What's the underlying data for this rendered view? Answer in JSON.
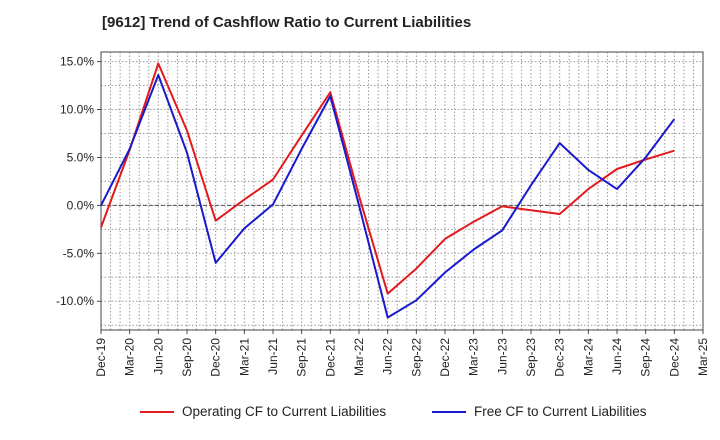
{
  "chart_data": {
    "type": "line",
    "title": "[9612]  Trend of Cashflow Ratio to Current Liabilities",
    "xlabel": "",
    "ylabel": "",
    "categories": [
      "Dec-19",
      "Mar-20",
      "Jun-20",
      "Sep-20",
      "Dec-20",
      "Mar-21",
      "Jun-21",
      "Sep-21",
      "Dec-21",
      "Mar-22",
      "Jun-22",
      "Sep-22",
      "Dec-22",
      "Mar-23",
      "Jun-23",
      "Sep-23",
      "Dec-23",
      "Mar-24",
      "Jun-24",
      "Sep-24",
      "Dec-24",
      "Mar-25"
    ],
    "yticks": [
      "15.0%",
      "10.0%",
      "5.0%",
      "0.0%",
      "-5.0%",
      "-10.0%"
    ],
    "ytick_values": [
      15,
      10,
      5,
      0,
      -5,
      -10
    ],
    "ylim": [
      -13,
      16
    ],
    "grid": true,
    "legend_position": "bottom",
    "series": [
      {
        "name": "Operating CF to Current Liabilities",
        "color": "#e31a1c",
        "values": [
          -2.3,
          5.8,
          14.8,
          7.8,
          -1.6,
          0.6,
          2.7,
          7.3,
          11.8,
          1.0,
          -9.2,
          -6.6,
          -3.5,
          -1.7,
          -0.1,
          -0.5,
          -0.9,
          1.7,
          3.8,
          4.8,
          5.7,
          null
        ]
      },
      {
        "name": "Free CF to Current Liabilities",
        "color": "#1a1acd",
        "values": [
          0.0,
          5.9,
          13.6,
          5.5,
          -6.0,
          -2.4,
          0.1,
          5.9,
          11.4,
          0.0,
          -11.7,
          -9.9,
          -7.0,
          -4.6,
          -2.6,
          2.1,
          6.5,
          3.7,
          1.7,
          5.0,
          9.0,
          null
        ]
      }
    ]
  }
}
